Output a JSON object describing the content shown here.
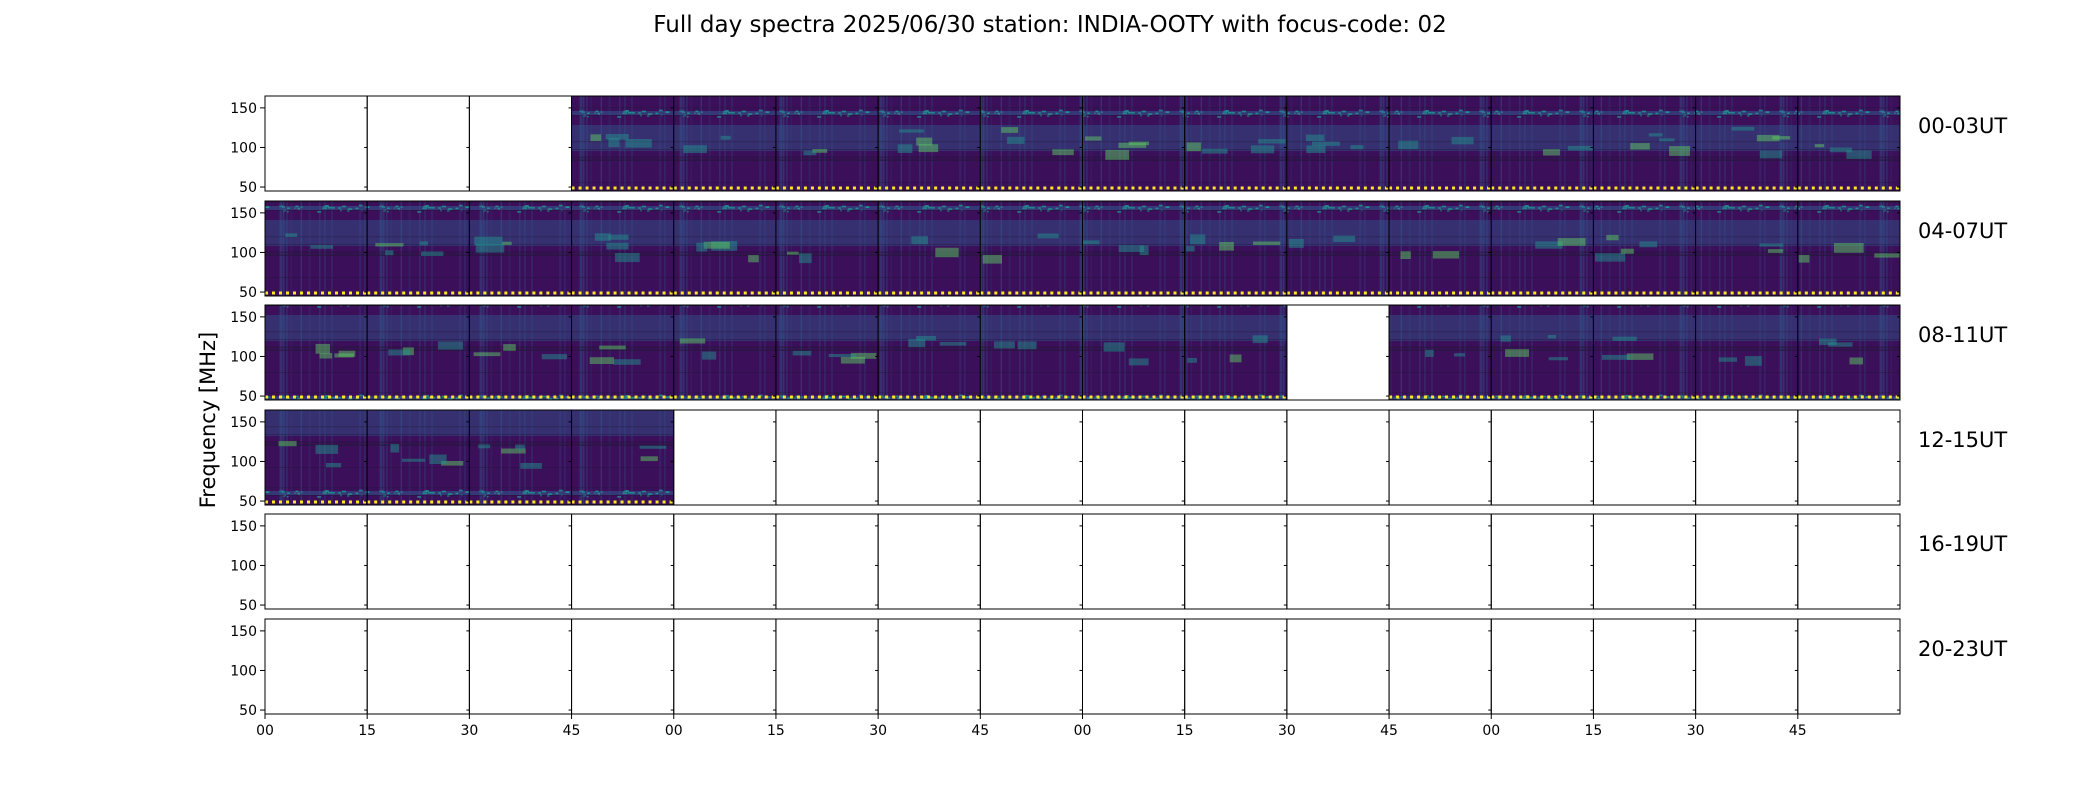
{
  "chart_data": {
    "type": "heatmap",
    "title": "Full day spectra 2025/06/30 station: INDIA-OOTY with focus-code: 02",
    "ylabel": "Frequency [MHz]",
    "xlabel": "",
    "ylim": [
      45,
      165
    ],
    "y_ticks": [
      50,
      100,
      150
    ],
    "x_ticks": [
      "00",
      "15",
      "30",
      "45",
      "00",
      "15",
      "30",
      "45",
      "00",
      "15",
      "30",
      "45",
      "00",
      "15",
      "30",
      "45"
    ],
    "colormap": "viridis",
    "panel_minutes": 15,
    "rows": [
      {
        "label": "00-03UT",
        "has_data": [
          false,
          false,
          false,
          true,
          true,
          true,
          true,
          true,
          true,
          true,
          true,
          true,
          true,
          true,
          true,
          true
        ]
      },
      {
        "label": "04-07UT",
        "has_data": [
          true,
          true,
          true,
          true,
          true,
          true,
          true,
          true,
          true,
          true,
          true,
          true,
          true,
          true,
          true,
          true
        ]
      },
      {
        "label": "08-11UT",
        "has_data": [
          true,
          true,
          true,
          true,
          true,
          true,
          true,
          true,
          true,
          true,
          false,
          true,
          true,
          true,
          true,
          true
        ]
      },
      {
        "label": "12-15UT",
        "has_data": [
          true,
          true,
          true,
          true,
          false,
          false,
          false,
          false,
          false,
          false,
          false,
          false,
          false,
          false,
          false,
          false
        ]
      },
      {
        "label": "16-19UT",
        "has_data": [
          false,
          false,
          false,
          false,
          false,
          false,
          false,
          false,
          false,
          false,
          false,
          false,
          false,
          false,
          false,
          false
        ]
      },
      {
        "label": "20-23UT",
        "has_data": [
          false,
          false,
          false,
          false,
          false,
          false,
          false,
          false,
          false,
          false,
          false,
          false,
          false,
          false,
          false,
          false
        ]
      }
    ],
    "grid": false,
    "legend": "none"
  },
  "colors": {
    "background_dark": "#3b0f59",
    "mid_band": "#30578d",
    "teal": "#21918c",
    "green": "#5ec962",
    "yellow": "#fde725",
    "frame": "#000000"
  }
}
